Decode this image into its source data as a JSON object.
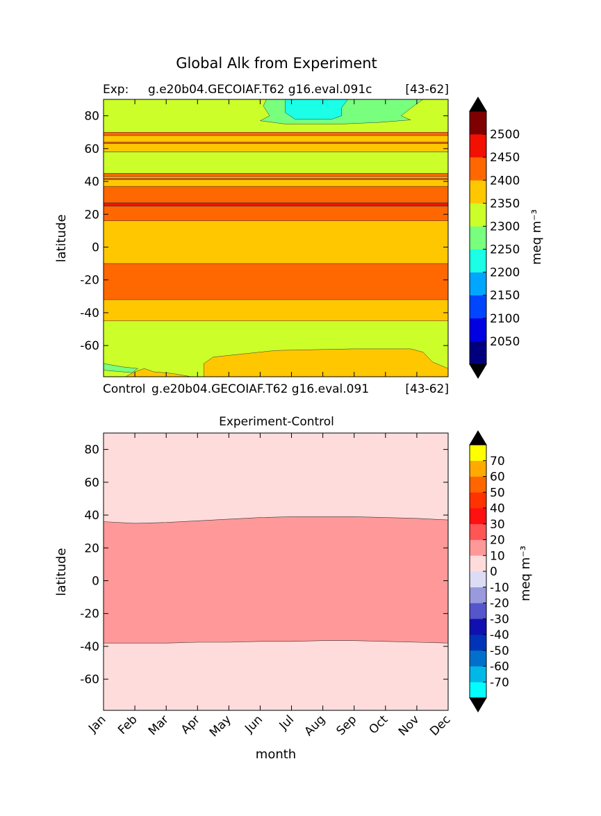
{
  "title": "Global Alk from Experiment",
  "top_label_left": "Exp:",
  "top_label_mid": "g.e20b04.GECOIAF.T62 g16.eval.091c",
  "top_label_right": "[43-62]",
  "bottom_label_left": "Control",
  "bottom_label_mid": "g.e20b04.GECOIAF.T62 g16.eval.091",
  "bottom_label_right": "[43-62]",
  "chart_data": [
    {
      "type": "heatmap",
      "title": "",
      "xlabel": "",
      "ylabel": "latitude",
      "xlim": [
        0,
        11
      ],
      "ylim": [
        -79,
        90
      ],
      "yticks": [
        80,
        60,
        40,
        20,
        0,
        -20,
        -40,
        -60
      ],
      "colorbar_label": "meq m⁻³",
      "colorbar_levels": [
        2000,
        2050,
        2100,
        2150,
        2200,
        2250,
        2300,
        2350,
        2400,
        2450,
        2500,
        2550
      ],
      "colorbar_colors": [
        "#00007f",
        "#0000e3",
        "#0046ff",
        "#00a6ff",
        "#1affe5",
        "#78ff7e",
        "#ccff2a",
        "#ffc700",
        "#ff6800",
        "#f21000",
        "#7f0000"
      ],
      "colorbar_ticks": [
        2050,
        2100,
        2150,
        2200,
        2250,
        2300,
        2350,
        2400,
        2450,
        2500
      ],
      "colorbar_extend": "both",
      "bands": [
        {
          "from": -79,
          "to": -45,
          "value": 2325
        },
        {
          "from": -45,
          "to": -32,
          "value": 2375
        },
        {
          "from": -32,
          "to": -10,
          "value": 2425
        },
        {
          "from": -10,
          "to": 16,
          "value": 2375
        },
        {
          "from": 16,
          "to": 25,
          "value": 2425
        },
        {
          "from": 25,
          "to": 27,
          "value": 2475
        },
        {
          "from": 27,
          "to": 37,
          "value": 2425
        },
        {
          "from": 37,
          "to": 41,
          "value": 2375
        },
        {
          "from": 41,
          "to": 42,
          "value": 2425
        },
        {
          "from": 42,
          "to": 43,
          "value": 2375
        },
        {
          "from": 43,
          "to": 45,
          "value": 2425
        },
        {
          "from": 45,
          "to": 58,
          "value": 2325
        },
        {
          "from": 58,
          "to": 63,
          "value": 2375
        },
        {
          "from": 63,
          "to": 64,
          "value": 2425
        },
        {
          "from": 64,
          "to": 68,
          "value": 2375
        },
        {
          "from": 68,
          "to": 70,
          "value": 2425
        },
        {
          "from": 70,
          "to": 90,
          "value": 2325
        }
      ],
      "patches": [
        {
          "value": 2275,
          "points": [
            [
              5.2,
              90
            ],
            [
              5.1,
              86
            ],
            [
              5.3,
              80
            ],
            [
              5.0,
              77
            ],
            [
              5.8,
              75
            ],
            [
              7.6,
              75
            ],
            [
              8.8,
              76
            ],
            [
              9.8,
              77.5
            ],
            [
              9.5,
              80
            ],
            [
              9.9,
              86
            ],
            [
              10.2,
              90
            ]
          ]
        },
        {
          "value": 2225,
          "points": [
            [
              5.8,
              90
            ],
            [
              5.8,
              82
            ],
            [
              6.1,
              78
            ],
            [
              7.3,
              78
            ],
            [
              7.6,
              80
            ],
            [
              7.6,
              85
            ],
            [
              7.8,
              90
            ]
          ]
        },
        {
          "value": 2375,
          "points": [
            [
              3.2,
              -79
            ],
            [
              3.2,
              -71
            ],
            [
              3.5,
              -67
            ],
            [
              5.5,
              -63
            ],
            [
              8.0,
              -62
            ],
            [
              9.8,
              -62
            ],
            [
              10.2,
              -64
            ],
            [
              10.5,
              -70
            ],
            [
              11.0,
              -74
            ],
            [
              11.0,
              -79
            ]
          ]
        },
        {
          "value": 2375,
          "points": [
            [
              0.7,
              -79
            ],
            [
              1.0,
              -76
            ],
            [
              1.3,
              -74
            ],
            [
              1.6,
              -76
            ],
            [
              2.2,
              -77
            ],
            [
              2.8,
              -79
            ]
          ]
        },
        {
          "value": 2275,
          "points": [
            [
              0,
              -71
            ],
            [
              0.6,
              -73
            ],
            [
              1.1,
              -74
            ],
            [
              0.9,
              -76.5
            ],
            [
              0,
              -75
            ]
          ]
        }
      ]
    },
    {
      "type": "heatmap",
      "title": "Experiment-Control",
      "xlabel": "month",
      "ylabel": "latitude",
      "xlim": [
        0,
        11
      ],
      "ylim": [
        -79,
        90
      ],
      "categories": [
        "Jan",
        "Feb",
        "Mar",
        "Apr",
        "May",
        "Jun",
        "Jul",
        "Aug",
        "Sep",
        "Oct",
        "Nov",
        "Dec"
      ],
      "yticks": [
        80,
        60,
        40,
        20,
        0,
        -20,
        -40,
        -60
      ],
      "colorbar_label": "meq m⁻³",
      "colorbar_levels": [
        -80,
        -70,
        -60,
        -50,
        -40,
        -30,
        -20,
        -10,
        0,
        10,
        20,
        30,
        40,
        50,
        60,
        70,
        80
      ],
      "colorbar_colors": [
        "#00ffff",
        "#00b8e8",
        "#0070cc",
        "#0034b8",
        "#1010b0",
        "#5555cc",
        "#9999dd",
        "#dcdcf5",
        "#ffdcdc",
        "#ff9999",
        "#ff5555",
        "#ff1111",
        "#ff3300",
        "#ff6600",
        "#ffaa00",
        "#ffff00"
      ],
      "colorbar_ticks": [
        70,
        60,
        50,
        40,
        30,
        20,
        10,
        0,
        -10,
        -20,
        -30,
        -40,
        -50,
        -60,
        -70
      ],
      "colorbar_extend": "both",
      "background_value": 5,
      "regions": [
        {
          "value": 15,
          "upper_boundary": [
            [
              0,
              36
            ],
            [
              1,
              35
            ],
            [
              2,
              35.5
            ],
            [
              3,
              36.5
            ],
            [
              4,
              37.5
            ],
            [
              5,
              38.5
            ],
            [
              6,
              39
            ],
            [
              7,
              39
            ],
            [
              8,
              39
            ],
            [
              9,
              38.5
            ],
            [
              10,
              38
            ],
            [
              11,
              37
            ]
          ],
          "lower_boundary": [
            [
              0,
              -38
            ],
            [
              1,
              -38
            ],
            [
              2,
              -38
            ],
            [
              3,
              -37.5
            ],
            [
              4,
              -37.5
            ],
            [
              5,
              -37
            ],
            [
              6,
              -37
            ],
            [
              7,
              -36.5
            ],
            [
              8,
              -36.5
            ],
            [
              9,
              -37
            ],
            [
              10,
              -37.5
            ],
            [
              11,
              -38
            ]
          ]
        }
      ]
    }
  ]
}
